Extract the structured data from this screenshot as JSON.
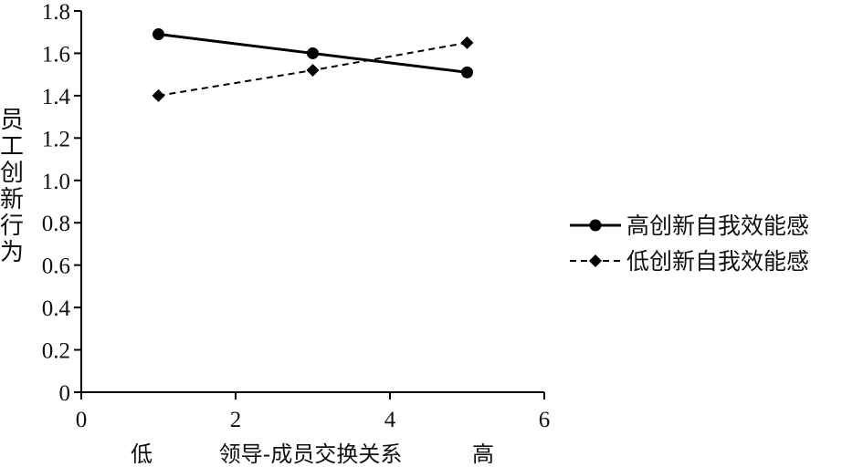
{
  "chart_data": {
    "type": "line",
    "title": "",
    "ylabel": "员工创新行为",
    "xlabel": {
      "low": "低",
      "middle": "领导-成员交换关系",
      "high": "高"
    },
    "xlim": [
      0,
      6
    ],
    "ylim": [
      0,
      1.8
    ],
    "x_ticks": [
      "0",
      "2",
      "4",
      "6"
    ],
    "y_ticks": [
      "0",
      "0.2",
      "0.4",
      "0.6",
      "0.8",
      "1.0",
      "1.2",
      "1.4",
      "1.6",
      "1.8"
    ],
    "grid": false,
    "legend_position": "right",
    "series": [
      {
        "name": "高创新自我效能感",
        "x": [
          1,
          3,
          5
        ],
        "y": [
          1.69,
          1.6,
          1.51
        ],
        "line_style": "solid",
        "marker": "circle",
        "color": "#000000"
      },
      {
        "name": "低创新自我效能感",
        "x": [
          1,
          3,
          5
        ],
        "y": [
          1.4,
          1.52,
          1.65
        ],
        "line_style": "dashed",
        "marker": "diamond",
        "color": "#000000"
      }
    ]
  }
}
